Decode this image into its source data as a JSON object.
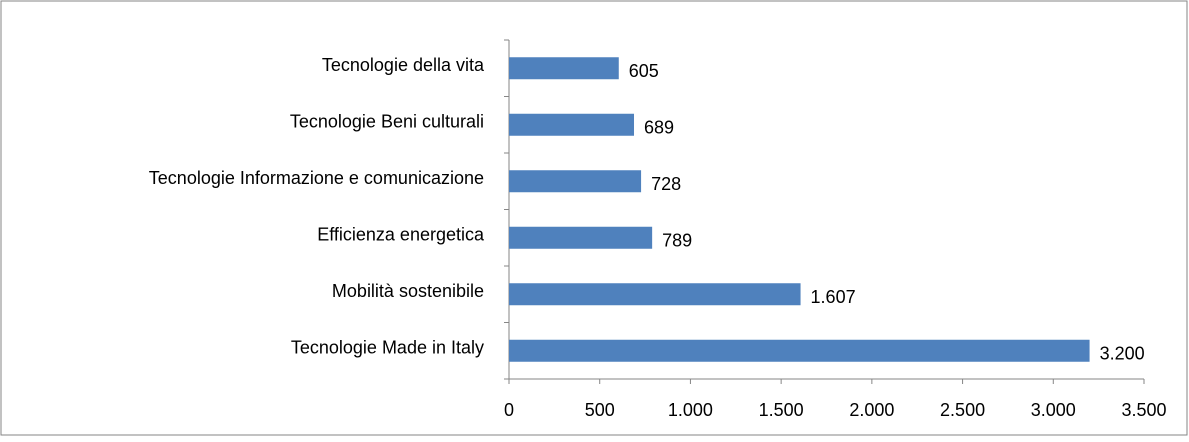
{
  "chart_data": {
    "type": "bar",
    "orientation": "horizontal",
    "categories": [
      "Tecnologie della vita",
      "Tecnologie Beni culturali",
      "Tecnologie Informazione e comunicazione",
      "Efficienza energetica",
      "Mobilità sostenibile",
      "Tecnologie Made in Italy"
    ],
    "values": [
      605,
      689,
      728,
      789,
      1607,
      3200
    ],
    "value_labels": [
      "605",
      "689",
      "728",
      "789",
      "1.607",
      "3.200"
    ],
    "color": "#4f81bd",
    "xlim": [
      0,
      3500
    ],
    "xticks": [
      0,
      500,
      {
        "value": 1000,
        "label": "1.000"
      },
      {
        "value": 1500,
        "label": "1.500"
      },
      {
        "value": 2000,
        "label": "2.000"
      },
      {
        "value": 2500,
        "label": "2.500"
      },
      {
        "value": 3000,
        "label": "3.000"
      },
      {
        "value": 3500,
        "label": "3.500"
      }
    ],
    "grid": false
  }
}
